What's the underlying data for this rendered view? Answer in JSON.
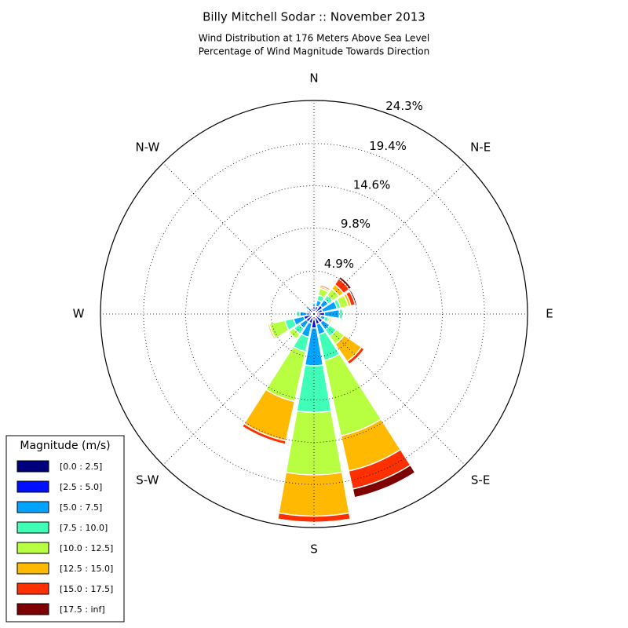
{
  "chart_data": {
    "type": "windrose",
    "title": "Billy Mitchell Sodar :: November 2013",
    "subtitle": [
      "Wind Distribution at 176 Meters Above Sea Level",
      "Percentage of Wind Magnitude Towards Direction"
    ],
    "categories": [
      "N",
      null,
      "N-E",
      null,
      "E",
      null,
      "S-E",
      null,
      "S",
      null,
      "S-W",
      null,
      "W",
      null,
      "N-W",
      null
    ],
    "rlim": [
      0,
      24.3
    ],
    "rticks": [
      {
        "value": 4.9,
        "label": "4.9%"
      },
      {
        "value": 9.8,
        "label": "9.8%"
      },
      {
        "value": 14.6,
        "label": "14.6%"
      },
      {
        "value": 19.4,
        "label": "19.4%"
      },
      {
        "value": 24.3,
        "label": "24.3%"
      }
    ],
    "legend_title": "Magnitude (m/s)",
    "legend_position": "lower left",
    "series": [
      {
        "name": "[0.0 : 2.5]",
        "color": "#00007f",
        "values": [
          0.3,
          0.3,
          0.3,
          0.3,
          0.4,
          0.3,
          0.4,
          0.4,
          0.7,
          0.4,
          0.4,
          0.4,
          0.3,
          0.3,
          0.3,
          0.3
        ]
      },
      {
        "name": "[2.5 : 5.0]",
        "color": "#0010ff",
        "values": [
          0.5,
          0.6,
          0.9,
          0.7,
          0.8,
          0.5,
          0.8,
          0.8,
          0.9,
          0.7,
          0.7,
          0.8,
          0.5,
          0.4,
          0.5,
          0.4
        ]
      },
      {
        "name": "[5.0 : 7.5]",
        "color": "#00a4ff",
        "values": [
          0.3,
          0.7,
          0.8,
          1.7,
          1.7,
          0.5,
          1.0,
          1.2,
          4.3,
          1.6,
          0.9,
          1.2,
          0.8,
          0.2,
          0.3,
          0.1
        ]
      },
      {
        "name": "[7.5 : 10.0]",
        "color": "#40ffb7",
        "values": [
          0.2,
          0.6,
          0.6,
          0.4,
          0.4,
          0.4,
          0.9,
          3.0,
          5.3,
          1.7,
          0.8,
          1.0,
          0.4,
          0,
          0,
          0
        ]
      },
      {
        "name": "[10.0 : 12.5]",
        "color": "#b7ff40",
        "values": [
          0,
          0.8,
          0.9,
          0.9,
          0,
          0.2,
          1.1,
          8.8,
          7.1,
          5.8,
          0.7,
          1.8,
          0,
          0,
          0,
          0
        ]
      },
      {
        "name": "[12.5 : 15.0]",
        "color": "#ffb900",
        "values": [
          0,
          0.2,
          0.6,
          0.3,
          0,
          0.2,
          2.4,
          4.1,
          4.7,
          4.6,
          0.1,
          0.2,
          0,
          0,
          0,
          0
        ]
      },
      {
        "name": "[15.0 : 17.5]",
        "color": "#ff3000",
        "values": [
          0,
          0.2,
          0.8,
          0.5,
          0,
          0,
          0.4,
          2.1,
          0.7,
          0.4,
          0,
          0,
          0,
          0,
          0,
          0
        ]
      },
      {
        "name": "[17.5 : inf]",
        "color": "#7f0000",
        "values": [
          0,
          0,
          0.3,
          0.2,
          0,
          0,
          0,
          1.0,
          0,
          0.1,
          0,
          0,
          0,
          0,
          0,
          0
        ]
      }
    ]
  }
}
